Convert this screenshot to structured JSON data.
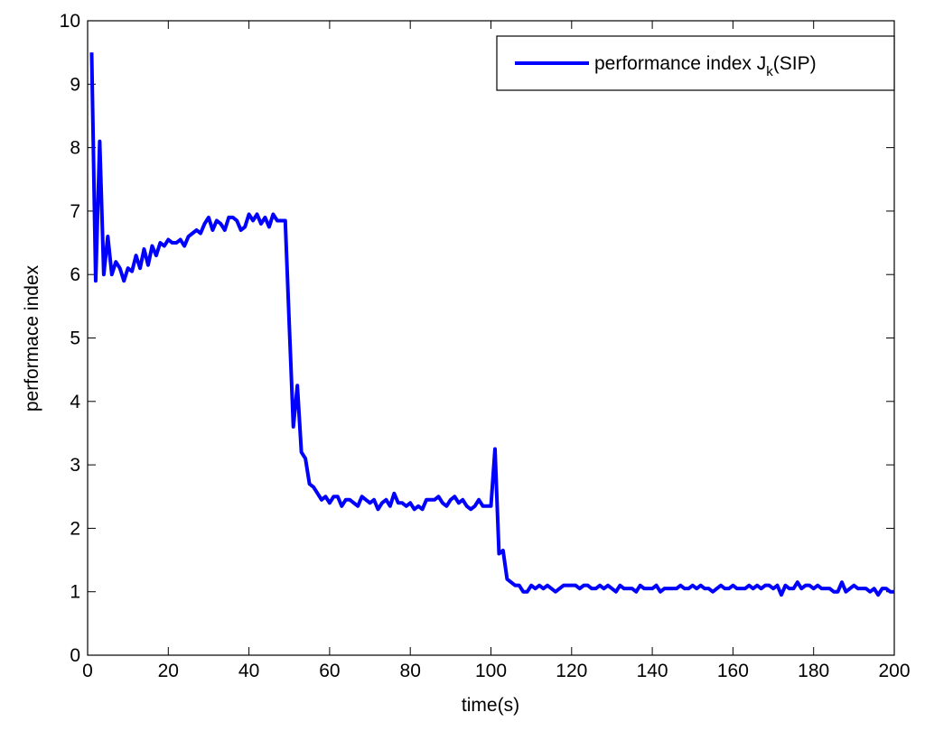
{
  "chart_data": {
    "type": "line",
    "xlabel": "time(s)",
    "ylabel": "performace index",
    "x": [
      1,
      2,
      3,
      4,
      5,
      6,
      7,
      8,
      9,
      10,
      11,
      12,
      13,
      14,
      15,
      16,
      17,
      18,
      19,
      20,
      21,
      22,
      23,
      24,
      25,
      26,
      27,
      28,
      29,
      30,
      31,
      32,
      33,
      34,
      35,
      36,
      37,
      38,
      39,
      40,
      41,
      42,
      43,
      44,
      45,
      46,
      47,
      48,
      49,
      50,
      51,
      52,
      53,
      54,
      55,
      56,
      57,
      58,
      59,
      60,
      61,
      62,
      63,
      64,
      65,
      66,
      67,
      68,
      69,
      70,
      71,
      72,
      73,
      74,
      75,
      76,
      77,
      78,
      79,
      80,
      81,
      82,
      83,
      84,
      85,
      86,
      87,
      88,
      89,
      90,
      91,
      92,
      93,
      94,
      95,
      96,
      97,
      98,
      99,
      100,
      101,
      102,
      103,
      104,
      105,
      106,
      107,
      108,
      109,
      110,
      111,
      112,
      113,
      114,
      115,
      116,
      117,
      118,
      119,
      120,
      121,
      122,
      123,
      124,
      125,
      126,
      127,
      128,
      129,
      130,
      131,
      132,
      133,
      134,
      135,
      136,
      137,
      138,
      139,
      140,
      141,
      142,
      143,
      144,
      145,
      146,
      147,
      148,
      149,
      150,
      151,
      152,
      153,
      154,
      155,
      156,
      157,
      158,
      159,
      160,
      161,
      162,
      163,
      164,
      165,
      166,
      167,
      168,
      169,
      170,
      171,
      172,
      173,
      174,
      175,
      176,
      177,
      178,
      179,
      180,
      181,
      182,
      183,
      184,
      185,
      186,
      187,
      188,
      189,
      190,
      191,
      192,
      193,
      194,
      195,
      196,
      197,
      198,
      199,
      200
    ],
    "series": [
      {
        "name": "performance index J_k(SIP)",
        "color": "#0000ff",
        "values": [
          9.5,
          5.9,
          8.1,
          6.0,
          6.6,
          6.0,
          6.2,
          6.1,
          5.9,
          6.1,
          6.05,
          6.3,
          6.1,
          6.4,
          6.15,
          6.45,
          6.3,
          6.5,
          6.45,
          6.55,
          6.5,
          6.5,
          6.55,
          6.45,
          6.6,
          6.65,
          6.7,
          6.65,
          6.8,
          6.9,
          6.7,
          6.85,
          6.8,
          6.7,
          6.9,
          6.9,
          6.85,
          6.7,
          6.75,
          6.95,
          6.85,
          6.95,
          6.8,
          6.9,
          6.75,
          6.95,
          6.85,
          6.85,
          6.85,
          5.2,
          3.6,
          4.25,
          3.2,
          3.1,
          2.7,
          2.65,
          2.55,
          2.45,
          2.5,
          2.4,
          2.5,
          2.5,
          2.35,
          2.45,
          2.45,
          2.4,
          2.35,
          2.5,
          2.45,
          2.4,
          2.45,
          2.3,
          2.4,
          2.45,
          2.35,
          2.55,
          2.4,
          2.4,
          2.35,
          2.4,
          2.3,
          2.35,
          2.3,
          2.45,
          2.45,
          2.45,
          2.5,
          2.4,
          2.35,
          2.45,
          2.5,
          2.4,
          2.45,
          2.35,
          2.3,
          2.35,
          2.45,
          2.35,
          2.35,
          2.35,
          3.25,
          1.6,
          1.65,
          1.2,
          1.15,
          1.1,
          1.1,
          1.0,
          1.0,
          1.1,
          1.05,
          1.1,
          1.05,
          1.1,
          1.05,
          1.0,
          1.05,
          1.1,
          1.1,
          1.1,
          1.1,
          1.05,
          1.1,
          1.1,
          1.05,
          1.05,
          1.1,
          1.05,
          1.1,
          1.05,
          1.0,
          1.1,
          1.05,
          1.05,
          1.05,
          1.0,
          1.1,
          1.05,
          1.05,
          1.05,
          1.1,
          1.0,
          1.05,
          1.05,
          1.05,
          1.05,
          1.1,
          1.05,
          1.05,
          1.1,
          1.05,
          1.1,
          1.05,
          1.05,
          1.0,
          1.05,
          1.1,
          1.05,
          1.05,
          1.1,
          1.05,
          1.05,
          1.05,
          1.1,
          1.05,
          1.1,
          1.05,
          1.1,
          1.1,
          1.05,
          1.1,
          0.95,
          1.1,
          1.05,
          1.05,
          1.15,
          1.05,
          1.1,
          1.1,
          1.05,
          1.1,
          1.05,
          1.05,
          1.05,
          1.0,
          1.0,
          1.15,
          1.0,
          1.05,
          1.1,
          1.05,
          1.05,
          1.05,
          1.0,
          1.05,
          0.95,
          1.05,
          1.05,
          1.0,
          1.0
        ]
      }
    ],
    "xlim": [
      0,
      200
    ],
    "xticks": [
      0,
      20,
      40,
      60,
      80,
      100,
      120,
      140,
      160,
      180,
      200
    ],
    "ylim": [
      0,
      10
    ],
    "yticks": [
      0,
      1,
      2,
      3,
      4,
      5,
      6,
      7,
      8,
      9,
      10
    ],
    "legend": "upper right"
  }
}
